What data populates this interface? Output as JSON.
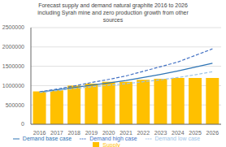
{
  "chart_data": {
    "type": "bar",
    "title": "Forecast supply and demand natural graphite 2016 to 2026\nincluding Syrah mine and zero production growth from other\nsources",
    "categories": [
      "2016",
      "2017",
      "2018",
      "2019",
      "2020",
      "2021",
      "2022",
      "2023",
      "2024",
      "2025",
      "2026"
    ],
    "series": [
      {
        "name": "Supply",
        "type": "bar",
        "color": "#FFC000",
        "values": [
          850000,
          880000,
          1000000,
          1050000,
          1100000,
          1100000,
          1150000,
          1175000,
          1200000,
          1200000,
          1200000
        ]
      },
      {
        "name": "Demand high case",
        "type": "line",
        "line_style": "dashed",
        "color": "#4472C4",
        "values": [
          840000,
          910000,
          990000,
          1080000,
          1160000,
          1250000,
          1370000,
          1490000,
          1610000,
          1780000,
          1950000
        ]
      },
      {
        "name": "Demand base case",
        "type": "line",
        "line_style": "solid",
        "color": "#2E74B5",
        "values": [
          830000,
          890000,
          950000,
          1010000,
          1070000,
          1130000,
          1210000,
          1290000,
          1380000,
          1480000,
          1580000
        ]
      },
      {
        "name": "Demand low case",
        "type": "line",
        "line_style": "dashed",
        "color": "#9DC3E6",
        "values": [
          820000,
          870000,
          920000,
          970000,
          1010000,
          1050000,
          1100000,
          1150000,
          1210000,
          1280000,
          1360000
        ]
      }
    ],
    "ylim": [
      0,
      2500000
    ],
    "yticks": [
      0,
      500000,
      1000000,
      1500000,
      2000000,
      2500000
    ],
    "grid": true,
    "legend": "bottom"
  }
}
